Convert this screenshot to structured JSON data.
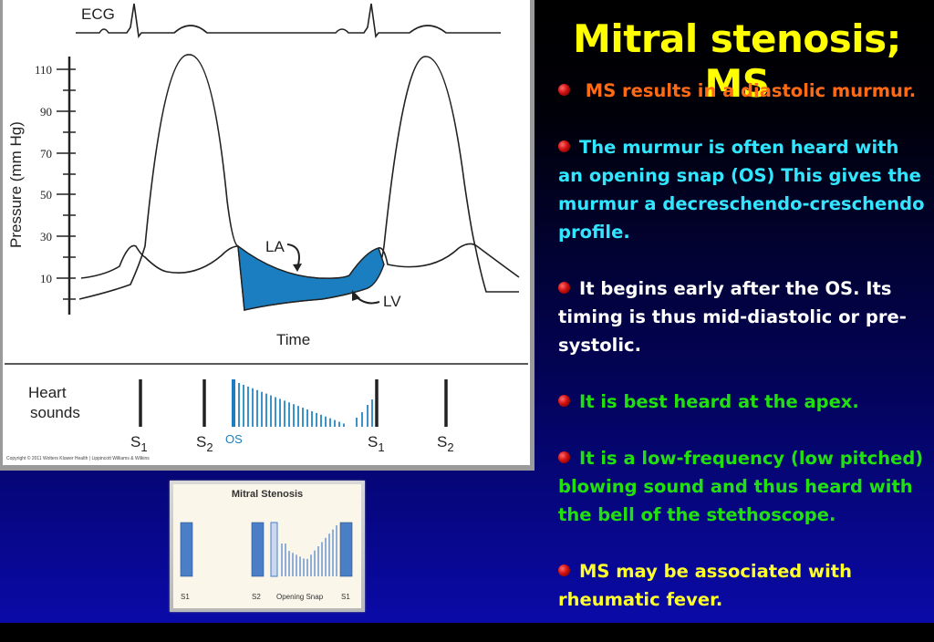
{
  "slide": {
    "title": "Mitral stenosis; MS",
    "bullets": [
      {
        "text": " MS results in a diastolic murmur.",
        "color": "#ff6a14"
      },
      {
        "text": "The murmur is often heard with an opening snap (OS) This  gives the murmur a decreschendo-creschendo profile.",
        "color": "#33e6ff"
      },
      {
        "text": "It begins early after the OS. Its timing is thus mid-diastolic or pre-systolic.",
        "color": "#ffffff"
      },
      {
        "text": "It is best heard  at the  apex.",
        "color": "#22e010"
      },
      {
        "text": "It is a low-frequency (low pitched) blowing sound and thus heard with the bell of the stethoscope.",
        "color": "#22e010"
      },
      {
        "text": "MS may be associated with rheumatic fever.",
        "color": "#ffff2a"
      }
    ]
  },
  "figure": {
    "ecg_label": "ECG",
    "y_axis_label": "Pressure (mm Hg)",
    "y_ticks": [
      "110",
      "90",
      "70",
      "50",
      "30",
      "10"
    ],
    "x_axis_label": "Time",
    "la_label": "LA",
    "lv_label": "LV",
    "heart_sounds_label_line1": "Heart",
    "heart_sounds_label_line2": "sounds",
    "sound_labels": {
      "s": "S",
      "sub1": "1",
      "sub2": "2",
      "os": "OS"
    },
    "copyright": "Copyright © 2011 Wolters Kluwer Health | Lippincott Williams & Wilkins",
    "fill_color": "#1a7ec0"
  },
  "inset": {
    "title": "Mitral Stenosis",
    "labels": [
      "S1",
      "S2",
      "Opening Snap",
      "S1"
    ],
    "bar_color": "#4a7fc8"
  }
}
